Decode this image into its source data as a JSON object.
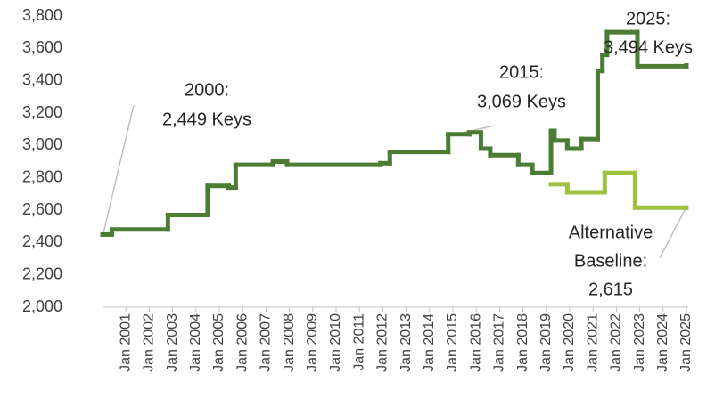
{
  "chart_data": {
    "type": "line",
    "step": true,
    "xlim": [
      2000,
      2025
    ],
    "xticks": [
      {
        "value": 2001,
        "label": "Jan 2001"
      },
      {
        "value": 2002,
        "label": "Jan 2002"
      },
      {
        "value": 2003,
        "label": "Jan 2003"
      },
      {
        "value": 2004,
        "label": "Jan 2004"
      },
      {
        "value": 2005,
        "label": "Jan 2005"
      },
      {
        "value": 2006,
        "label": "Jan 2006"
      },
      {
        "value": 2007,
        "label": "Jan 2007"
      },
      {
        "value": 2008,
        "label": "Jan 2008"
      },
      {
        "value": 2009,
        "label": "Jan 2009"
      },
      {
        "value": 2010,
        "label": "Jan 2010"
      },
      {
        "value": 2011,
        "label": "Jan 2011"
      },
      {
        "value": 2012,
        "label": "Jan 2012"
      },
      {
        "value": 2013,
        "label": "Jan 2013"
      },
      {
        "value": 2014,
        "label": "Jan 2014"
      },
      {
        "value": 2015,
        "label": "Jan 2015"
      },
      {
        "value": 2016,
        "label": "Jan 2016"
      },
      {
        "value": 2017,
        "label": "Jan 2017"
      },
      {
        "value": 2018,
        "label": "Jan 2018"
      },
      {
        "value": 2019,
        "label": "Jan 2019"
      },
      {
        "value": 2020,
        "label": "Jan 2020"
      },
      {
        "value": 2021,
        "label": "Jan 2021"
      },
      {
        "value": 2022,
        "label": "Jan 2022"
      },
      {
        "value": 2023,
        "label": "Jan 2023"
      },
      {
        "value": 2024,
        "label": "Jan 2024"
      },
      {
        "value": 2025,
        "label": "Jan 2025"
      }
    ],
    "ylim": [
      2000,
      3800
    ],
    "yticks": [
      {
        "value": 2000,
        "label": "2,000"
      },
      {
        "value": 2200,
        "label": "2,200"
      },
      {
        "value": 2400,
        "label": "2,400"
      },
      {
        "value": 2600,
        "label": "2,600"
      },
      {
        "value": 2800,
        "label": "2,800"
      },
      {
        "value": 3000,
        "label": "3,000"
      },
      {
        "value": 3200,
        "label": "3,200"
      },
      {
        "value": 3400,
        "label": "3,400"
      },
      {
        "value": 3600,
        "label": "3,600"
      },
      {
        "value": 3800,
        "label": "3,800"
      }
    ],
    "grid": false,
    "series": [
      {
        "color": "#4a7c34",
        "x": [
          2000.0,
          2000.4,
          2002.8,
          2004.5,
          2005.4,
          2005.7,
          2007.3,
          2007.9,
          2011.9,
          2012.3,
          2014.8,
          2015.7,
          2016.2,
          2016.6,
          2017.8,
          2018.4,
          2019.2,
          2019.35,
          2019.9,
          2020.5,
          2021.2,
          2021.4,
          2021.6,
          2022.9,
          2025
        ],
        "values": [
          2449,
          2480,
          2570,
          2750,
          2740,
          2880,
          2900,
          2880,
          2890,
          2960,
          3069,
          3080,
          2980,
          2940,
          2880,
          2830,
          3090,
          3030,
          2980,
          3040,
          3460,
          3560,
          3700,
          3490,
          3494
        ]
      },
      {
        "color": "#a0c040",
        "x": [
          2019.2,
          2019.9,
          2021.5,
          2022.8,
          2025
        ],
        "values": [
          2760,
          2710,
          2830,
          2615,
          2615
        ]
      }
    ],
    "annotations": [
      {
        "lines": [
          "2000:",
          "2,449 Keys"
        ]
      },
      {
        "lines": [
          "2015:",
          "3,069 Keys"
        ]
      },
      {
        "lines": [
          "2025:",
          "3,494 Keys"
        ]
      },
      {
        "lines": [
          "Alternative",
          "Baseline:",
          "2,615"
        ]
      }
    ]
  }
}
